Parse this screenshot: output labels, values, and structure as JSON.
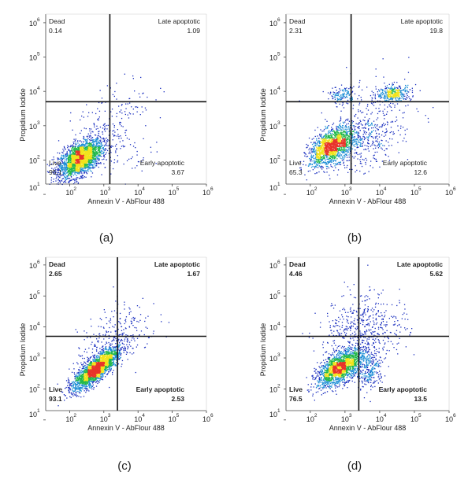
{
  "chart_data": [
    {
      "type": "scatter",
      "caption": "(a)",
      "xlabel": "Annexin V - AbFlour 488",
      "ylabel": "Propidium Iodide",
      "scale": "log",
      "xlim": [
        10,
        1000000
      ],
      "ylim": [
        10,
        1000000
      ],
      "x_ticks": [
        "10",
        "10",
        "10",
        "10",
        "10",
        "10"
      ],
      "x_tick_exponents": [
        "1",
        "2",
        "3",
        "4",
        "5",
        "6"
      ],
      "y_ticks": [
        "10",
        "10",
        "10",
        "10",
        "10",
        "10"
      ],
      "y_tick_exponents": [
        "1",
        "2",
        "3",
        "4",
        "5",
        "6"
      ],
      "gate_x": 1500,
      "gate_y": 5000,
      "bold_labels": false,
      "quadrants": {
        "upper_left": {
          "name": "Dead",
          "value": "0.14"
        },
        "upper_right": {
          "name": "Late apoptotic",
          "value": "1.09"
        },
        "lower_left": {
          "name": "Live",
          "value": "95.1"
        },
        "lower_right": {
          "name": "Early apoptotic",
          "value": "3.67"
        }
      },
      "populations": [
        {
          "center_log": [
            2.3,
            2.05
          ],
          "spread_log": [
            0.32,
            0.28
          ],
          "corr": 0.55,
          "weight": 0.9
        },
        {
          "center_log": [
            3.2,
            3.2
          ],
          "spread_log": [
            0.6,
            0.6
          ],
          "corr": 0.6,
          "weight": 0.07
        },
        {
          "center_log": [
            3.3,
            2.2
          ],
          "spread_log": [
            0.5,
            0.3
          ],
          "corr": 0.1,
          "weight": 0.03
        }
      ]
    },
    {
      "type": "scatter",
      "caption": "(b)",
      "xlabel": "Annexin V - AbFlour 488",
      "ylabel": "Propidium Iodide",
      "scale": "log",
      "xlim": [
        10,
        1000000
      ],
      "ylim": [
        10,
        1000000
      ],
      "x_ticks": [
        "10",
        "10",
        "10",
        "10",
        "10",
        "10"
      ],
      "x_tick_exponents": [
        "1",
        "2",
        "3",
        "4",
        "5",
        "6"
      ],
      "y_ticks": [
        "10",
        "10",
        "10",
        "10",
        "10",
        "10"
      ],
      "y_tick_exponents": [
        "1",
        "2",
        "3",
        "4",
        "5",
        "6"
      ],
      "gate_x": 1500,
      "gate_y": 5000,
      "bold_labels": false,
      "quadrants": {
        "upper_left": {
          "name": "Dead",
          "value": "2.31"
        },
        "upper_right": {
          "name": "Late apoptotic",
          "value": "19.8"
        },
        "lower_left": {
          "name": "Live",
          "value": "65.3"
        },
        "lower_right": {
          "name": "Early apoptotic",
          "value": "12.6"
        }
      },
      "populations": [
        {
          "center_log": [
            2.6,
            2.4
          ],
          "spread_log": [
            0.32,
            0.28
          ],
          "corr": 0.5,
          "weight": 0.62
        },
        {
          "center_log": [
            4.4,
            3.95
          ],
          "spread_log": [
            0.25,
            0.12
          ],
          "corr": 0.2,
          "weight": 0.14
        },
        {
          "center_log": [
            2.9,
            3.9
          ],
          "spread_log": [
            0.18,
            0.12
          ],
          "corr": 0.0,
          "weight": 0.05
        },
        {
          "center_log": [
            3.6,
            2.6
          ],
          "spread_log": [
            0.5,
            0.45
          ],
          "corr": 0.3,
          "weight": 0.14
        },
        {
          "center_log": [
            3.8,
            3.4
          ],
          "spread_log": [
            0.7,
            0.6
          ],
          "corr": 0.2,
          "weight": 0.05
        }
      ]
    },
    {
      "type": "scatter",
      "caption": "(c)",
      "xlabel": "Annexin V - AbFlour 488",
      "ylabel": "Propidium Iodide",
      "scale": "log",
      "xlim": [
        10,
        1000000
      ],
      "ylim": [
        10,
        1000000
      ],
      "x_ticks": [
        "10",
        "10",
        "10",
        "10",
        "10",
        "10"
      ],
      "x_tick_exponents": [
        "1",
        "2",
        "3",
        "4",
        "5",
        "6"
      ],
      "y_ticks": [
        "10",
        "10",
        "10",
        "10",
        "10",
        "10"
      ],
      "y_tick_exponents": [
        "1",
        "2",
        "3",
        "4",
        "5",
        "6"
      ],
      "gate_x": 2500,
      "gate_y": 5000,
      "bold_labels": true,
      "quadrants": {
        "upper_left": {
          "name": "Dead",
          "value": "2.65"
        },
        "upper_right": {
          "name": "Late apoptotic",
          "value": "1.67"
        },
        "lower_left": {
          "name": "Live",
          "value": "93.1"
        },
        "lower_right": {
          "name": "Early apoptotic",
          "value": "2.53"
        }
      },
      "populations": [
        {
          "center_log": [
            2.75,
            2.65
          ],
          "spread_log": [
            0.33,
            0.33
          ],
          "corr": 0.8,
          "weight": 0.88
        },
        {
          "center_log": [
            3.1,
            3.5
          ],
          "spread_log": [
            0.45,
            0.55
          ],
          "corr": 0.5,
          "weight": 0.08
        },
        {
          "center_log": [
            3.6,
            3.9
          ],
          "spread_log": [
            0.5,
            0.5
          ],
          "corr": 0.3,
          "weight": 0.04
        }
      ]
    },
    {
      "type": "scatter",
      "caption": "(d)",
      "xlabel": "Annexin V - AbFlour 488",
      "ylabel": "Propidium Iodide",
      "scale": "log",
      "xlim": [
        10,
        1000000
      ],
      "ylim": [
        10,
        1000000
      ],
      "x_ticks": [
        "10",
        "10",
        "10",
        "10",
        "10",
        "10"
      ],
      "x_tick_exponents": [
        "1",
        "2",
        "3",
        "4",
        "5",
        "6"
      ],
      "y_ticks": [
        "10",
        "10",
        "10",
        "10",
        "10",
        "10"
      ],
      "y_tick_exponents": [
        "1",
        "2",
        "3",
        "4",
        "5",
        "6"
      ],
      "gate_x": 2500,
      "gate_y": 5000,
      "bold_labels": true,
      "quadrants": {
        "upper_left": {
          "name": "Dead",
          "value": "4.46"
        },
        "upper_right": {
          "name": "Late apoptotic",
          "value": "5.62"
        },
        "lower_left": {
          "name": "Live",
          "value": "76.5"
        },
        "lower_right": {
          "name": "Early apoptotic",
          "value": "13.5"
        }
      },
      "populations": [
        {
          "center_log": [
            2.85,
            2.7
          ],
          "spread_log": [
            0.33,
            0.3
          ],
          "corr": 0.6,
          "weight": 0.7
        },
        {
          "center_log": [
            3.7,
            2.6
          ],
          "spread_log": [
            0.2,
            0.3
          ],
          "corr": 0.2,
          "weight": 0.1
        },
        {
          "center_log": [
            3.1,
            3.9
          ],
          "spread_log": [
            0.45,
            0.6
          ],
          "corr": 0.3,
          "weight": 0.1
        },
        {
          "center_log": [
            3.9,
            3.9
          ],
          "spread_log": [
            0.45,
            0.5
          ],
          "corr": 0.2,
          "weight": 0.1
        }
      ]
    }
  ],
  "colors": {
    "sparse": "#1a2fbf",
    "low": "#1f8fd6",
    "mid": "#22b84a",
    "high": "#f2e31b",
    "peak": "#e8342a",
    "gate_line": "#111111",
    "axis": "#444444"
  }
}
